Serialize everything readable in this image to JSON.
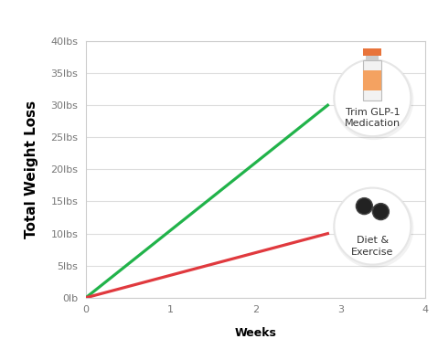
{
  "chart_data": {
    "type": "line",
    "x_label": "Weeks",
    "y_label": "Total Weight Loss",
    "xlim": [
      0,
      4
    ],
    "xticks": [
      0,
      1,
      2,
      3,
      4
    ],
    "ylim": [
      0,
      40
    ],
    "yticks": [
      {
        "value": 0,
        "label": "0lb"
      },
      {
        "value": 5,
        "label": "5lbs"
      },
      {
        "value": 10,
        "label": "10lbs"
      },
      {
        "value": 15,
        "label": "15lbs"
      },
      {
        "value": 20,
        "label": "20lbs"
      },
      {
        "value": 25,
        "label": "25lbs"
      },
      {
        "value": 30,
        "label": "30lbs"
      },
      {
        "value": 35,
        "label": "35lbs"
      },
      {
        "value": 40,
        "label": "40lbs"
      }
    ],
    "grid": true,
    "x": [
      0,
      2.85
    ],
    "series": [
      {
        "name": "Trim GLP-1\nMedication",
        "color": "#21b34a",
        "values": [
          0,
          30
        ],
        "line_style": "solid"
      },
      {
        "name": "Diet &\nExercise",
        "color": "#e0393e",
        "values": [
          0,
          10
        ],
        "line_style": "solid"
      }
    ]
  }
}
